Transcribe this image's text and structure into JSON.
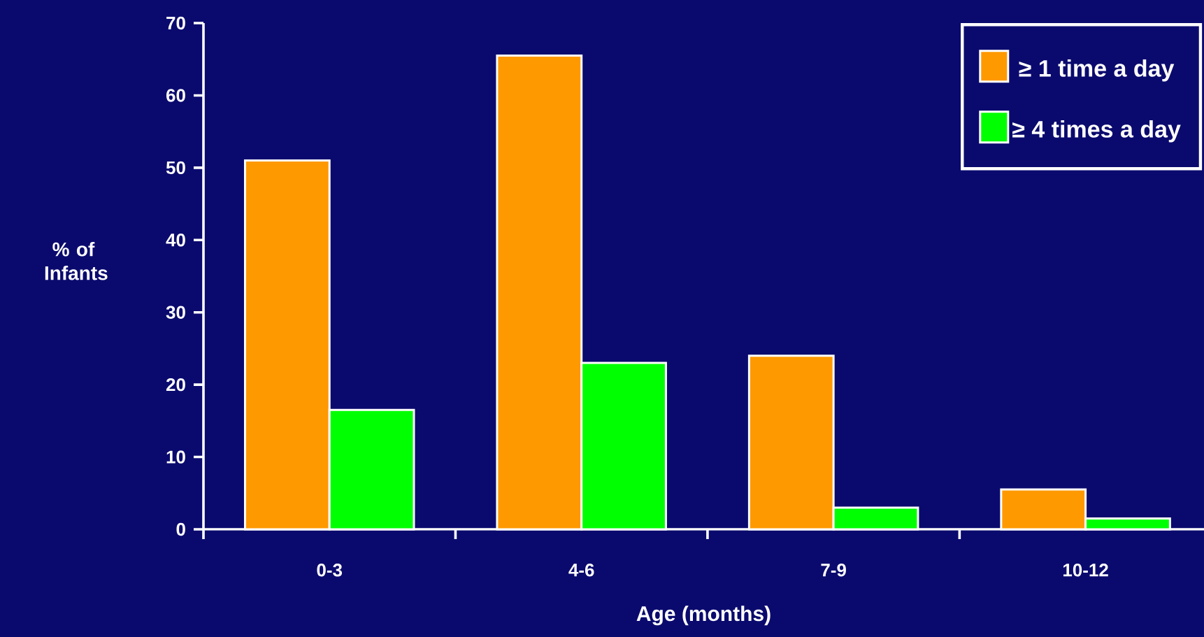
{
  "chart_data": {
    "type": "bar",
    "xlabel": "Age (months)",
    "ylabel": "% of Infants",
    "categories": [
      "0-3",
      "4-6",
      "7-9",
      "10-12"
    ],
    "series": [
      {
        "name": "≥ 1 time a day",
        "color": "#ff9900",
        "values": [
          51,
          65.5,
          24,
          5.5
        ]
      },
      {
        "name": "≥ 4 times a day",
        "color": "#00ff00",
        "values": [
          16.5,
          23,
          3,
          1.5
        ]
      }
    ],
    "ylim": [
      0,
      70
    ],
    "yticks": [
      0,
      10,
      20,
      30,
      40,
      50,
      60,
      70
    ],
    "legend": "top right",
    "grid": false
  }
}
